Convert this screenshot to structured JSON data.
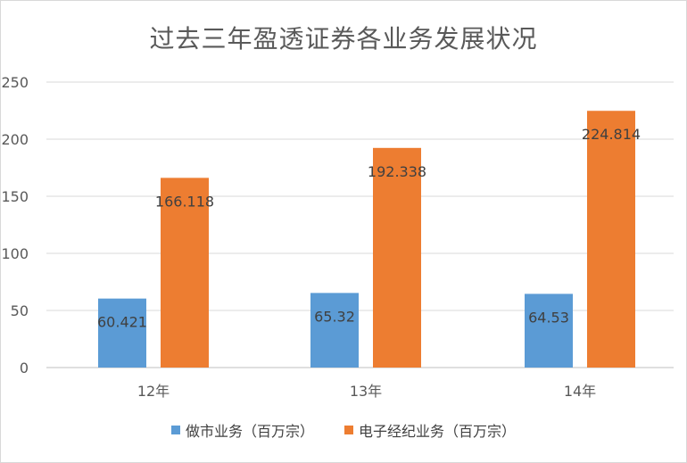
{
  "chart_data": {
    "type": "bar",
    "title": "过去三年盈透证券各业务发展状况",
    "categories": [
      "12年",
      "13年",
      "14年"
    ],
    "series": [
      {
        "name": "做市业务（百万宗）",
        "values": [
          60.421,
          65.32,
          64.53
        ],
        "labels": [
          "60.421",
          "65.32",
          "64.53"
        ],
        "color": "#5b9bd5"
      },
      {
        "name": "电子经纪业务（百万宗）",
        "values": [
          166.118,
          192.338,
          224.814
        ],
        "labels": [
          "166.118",
          "192.338",
          "224.814"
        ],
        "color": "#ed7d31"
      }
    ],
    "ylim": [
      0,
      250
    ],
    "yticks": [
      0,
      50,
      100,
      150,
      200,
      250
    ],
    "grid": true,
    "legend": "bottom"
  }
}
